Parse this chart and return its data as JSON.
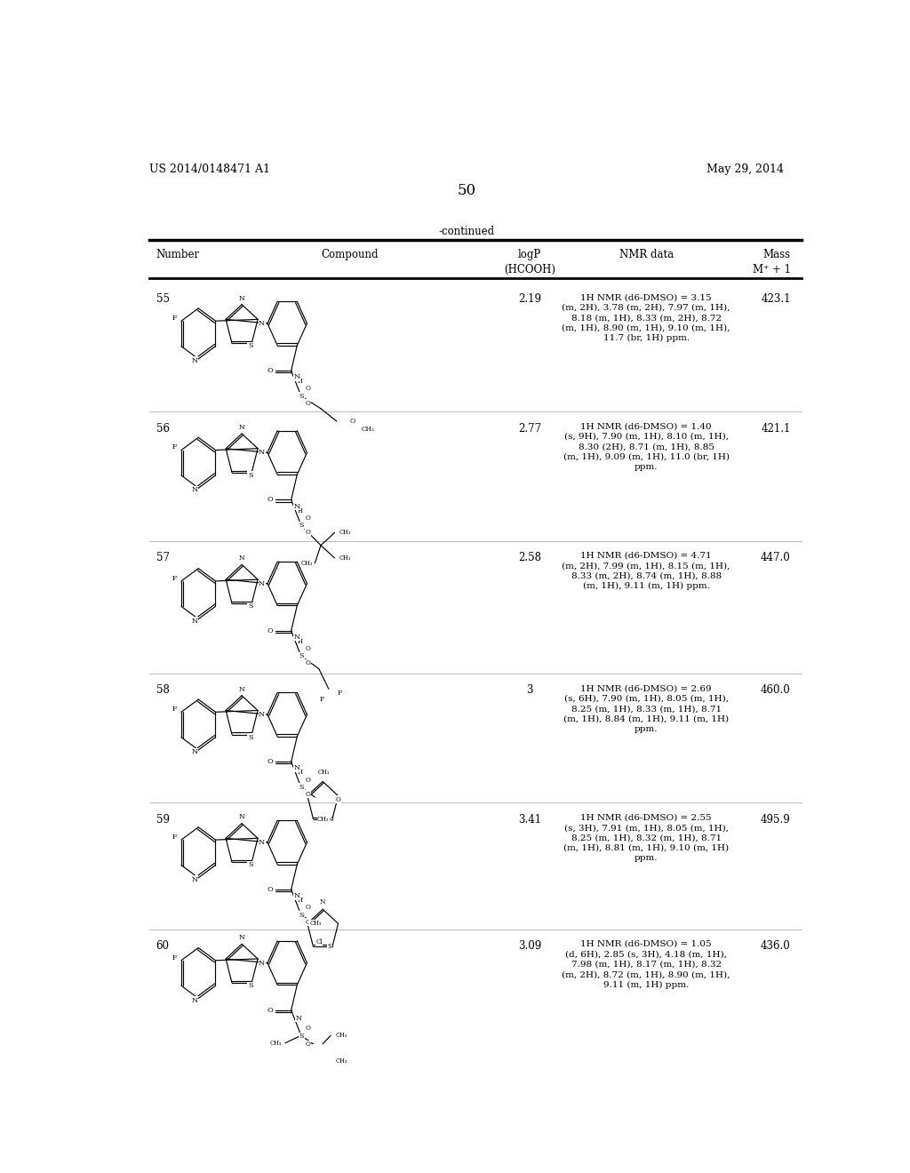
{
  "patent_number": "US 2014/0148471 A1",
  "date": "May 29, 2014",
  "page_number": "50",
  "continued_label": "-continued",
  "col_headers": {
    "number": "Number",
    "compound": "Compound",
    "logp": "logP\n(HCOOH)",
    "nmr": "NMR data",
    "mass": "Mass\nM⁺ + 1"
  },
  "rows": [
    {
      "number": "55",
      "logp": "2.19",
      "nmr": "1H NMR (d6-DMSO) = 3.15\n(m, 2H), 3.78 (m, 2H), 7.97 (m, 1H),\n8.18 (m, 1H), 8.33 (m, 2H), 8.72\n(m, 1H), 8.90 (m, 1H), 9.10 (m, 1H),\n11.7 (br, 1H) ppm.",
      "mass": "423.1"
    },
    {
      "number": "56",
      "logp": "2.77",
      "nmr": "1H NMR (d6-DMSO) = 1.40\n(s, 9H), 7.90 (m, 1H), 8.10 (m, 1H),\n8.30 (2H), 8.71 (m, 1H), 8.85\n(m, 1H), 9.09 (m, 1H), 11.0 (br, 1H)\nppm.",
      "mass": "421.1"
    },
    {
      "number": "57",
      "logp": "2.58",
      "nmr": "1H NMR (d6-DMSO) = 4.71\n(m, 2H), 7.99 (m, 1H), 8.15 (m, 1H),\n8.33 (m, 2H), 8.74 (m, 1H), 8.88\n(m, 1H), 9.11 (m, 1H) ppm.",
      "mass": "447.0"
    },
    {
      "number": "58",
      "logp": "3",
      "nmr": "1H NMR (d6-DMSO) = 2.69\n(s, 6H), 7.90 (m, 1H), 8.05 (m, 1H),\n8.25 (m, 1H), 8.33 (m, 1H), 8.71\n(m, 1H), 8.84 (m, 1H), 9.11 (m, 1H)\nppm.",
      "mass": "460.0"
    },
    {
      "number": "59",
      "logp": "3.41",
      "nmr": "1H NMR (d6-DMSO) = 2.55\n(s, 3H), 7.91 (m, 1H), 8.05 (m, 1H),\n8.25 (m, 1H), 8.32 (m, 1H), 8.71\n(m, 1H), 8.81 (m, 1H), 9.10 (m, 1H)\nppm.",
      "mass": "495.9"
    },
    {
      "number": "60",
      "logp": "3.09",
      "nmr": "1H NMR (d6-DMSO) = 1.05\n(d, 6H), 2.85 (s, 3H), 4.18 (m, 1H),\n7.98 (m, 1H), 8.17 (m, 1H), 8.32\n(m, 2H), 8.72 (m, 1H), 8.90 (m, 1H),\n9.11 (m, 1H) ppm.",
      "mass": "436.0"
    }
  ],
  "bg_color": "#ffffff",
  "text_color": "#000000"
}
